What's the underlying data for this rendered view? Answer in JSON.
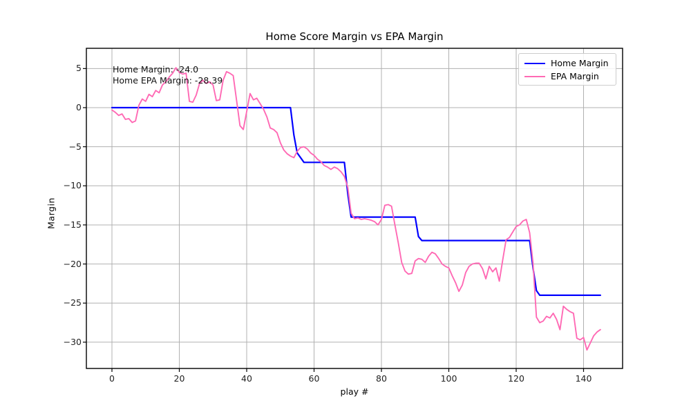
{
  "title": "Home Score Margin vs EPA Margin",
  "axes": {
    "xlabel": "play #",
    "ylabel": "Margin"
  },
  "annotation": {
    "line1": "Home Margin: -24.0",
    "line2": "Home EPA Margin: -28.39"
  },
  "legend": {
    "entries": [
      {
        "label": "Home Margin",
        "color": "#0000ff"
      },
      {
        "label": "EPA Margin",
        "color": "#ff69b4"
      }
    ]
  },
  "colors": {
    "home_line": "#0000ff",
    "epa_line": "#ff69b4",
    "grid": "#b0b0b0",
    "spine": "#000000",
    "text": "#000000"
  },
  "chart_data": {
    "type": "line",
    "title": "Home Score Margin vs EPA Margin",
    "xlabel": "play #",
    "ylabel": "Margin",
    "xlim": [
      -7.6,
      151.6
    ],
    "ylim": [
      -33.4,
      7.6
    ],
    "grid": true,
    "legend_position": "upper right",
    "x_ticks": {
      "values": [
        0,
        20,
        40,
        60,
        80,
        100,
        120,
        140
      ],
      "labels": [
        "0",
        "20",
        "40",
        "60",
        "80",
        "100",
        "120",
        "140"
      ]
    },
    "y_ticks": {
      "values": [
        5,
        0,
        -5,
        -10,
        -15,
        -20,
        -25,
        -30
      ],
      "labels": [
        "5",
        "0",
        "−5",
        "−10",
        "−15",
        "−20",
        "−25",
        "−30"
      ]
    },
    "series": [
      {
        "name": "Home Margin",
        "color": "#0000ff",
        "linewidth": 2.2,
        "x": [
          0,
          53,
          54,
          55,
          57,
          68,
          69,
          70,
          71,
          89,
          90,
          91,
          92,
          123,
          124,
          125,
          126,
          127,
          145
        ],
        "y": [
          0,
          0,
          -3.5,
          -5.8,
          -7,
          -7,
          -7,
          -11,
          -14,
          -14,
          -14,
          -16.5,
          -17,
          -17,
          -17,
          -20.5,
          -23.4,
          -24,
          -24
        ]
      },
      {
        "name": "EPA Margin",
        "color": "#ff69b4",
        "linewidth": 1.9,
        "x_start": 0,
        "x_step": 1,
        "y": [
          -0.3,
          -0.6,
          -1.0,
          -0.8,
          -1.5,
          -1.4,
          -1.9,
          -1.7,
          0.3,
          1.1,
          0.8,
          1.7,
          1.4,
          2.2,
          1.9,
          2.9,
          3.3,
          3.9,
          4.4,
          5.1,
          4.5,
          4.3,
          4.4,
          0.8,
          0.7,
          1.6,
          3.1,
          3.5,
          3.1,
          3.3,
          2.9,
          0.9,
          1.0,
          3.5,
          4.6,
          4.4,
          4.1,
          0.9,
          -2.3,
          -2.8,
          -0.5,
          1.8,
          1.0,
          1.2,
          0.5,
          -0.2,
          -1.2,
          -2.6,
          -2.8,
          -3.2,
          -4.5,
          -5.4,
          -5.9,
          -6.2,
          -6.4,
          -5.6,
          -5.1,
          -5.0,
          -5.3,
          -5.8,
          -6.1,
          -6.6,
          -6.9,
          -7.4,
          -7.6,
          -7.9,
          -7.6,
          -7.8,
          -8.2,
          -8.8,
          -10.2,
          -13.5,
          -14.2,
          -14.1,
          -14.3,
          -14.2,
          -14.3,
          -14.4,
          -14.6,
          -15.0,
          -14.3,
          -12.5,
          -12.4,
          -12.6,
          -15.0,
          -17.3,
          -19.8,
          -20.9,
          -21.3,
          -21.2,
          -19.6,
          -19.3,
          -19.4,
          -19.8,
          -19.0,
          -18.5,
          -18.7,
          -19.3,
          -20.0,
          -20.3,
          -20.5,
          -21.5,
          -22.4,
          -23.5,
          -22.7,
          -21.1,
          -20.3,
          -20.0,
          -19.9,
          -19.9,
          -20.6,
          -21.9,
          -20.3,
          -21.0,
          -20.5,
          -22.2,
          -19.5,
          -16.9,
          -16.6,
          -15.9,
          -15.2,
          -15.0,
          -14.5,
          -14.3,
          -16.0,
          -19.9,
          -26.8,
          -27.5,
          -27.3,
          -26.7,
          -26.9,
          -26.3,
          -27.1,
          -28.4,
          -25.4,
          -25.8,
          -26.1,
          -26.3,
          -29.5,
          -29.7,
          -29.4,
          -31.0,
          -30.1,
          -29.2,
          -28.7,
          -28.39
        ]
      }
    ]
  }
}
